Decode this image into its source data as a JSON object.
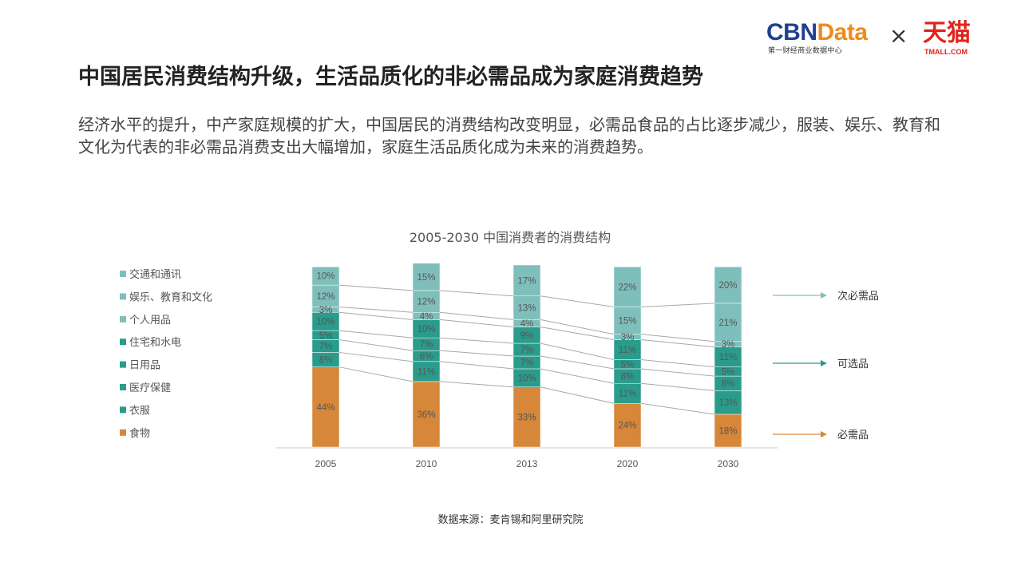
{
  "header": {
    "logo_cbn_part1": "CBN",
    "logo_cbn_part2": "Data",
    "logo_cbn_sub": "第一财经商业数据中心",
    "logo_times": "×",
    "logo_tmall": "天猫",
    "logo_tmall_sub": "TMALL.COM"
  },
  "page": {
    "title": "中国居民消费结构升级，生活品质化的非必需品成为家庭消费趋势",
    "description": "经济水平的提升，中产家庭规模的扩大，中国居民的消费结构改变明显，必需品食品的占比逐步减少，服装、娱乐、教育和文化为代表的非必需品消费支出大幅增加，家庭生活品质化成为未来的消费趋势。",
    "source": "数据来源：麦肯锡和阿里研究院"
  },
  "colors": {
    "food": "#d6873a",
    "mid": "#2a9c8c",
    "light": "#7fbfbb",
    "connector": "#a8a8a8"
  },
  "chart_data": {
    "type": "bar",
    "stacked": true,
    "title": "2005-2030 中国消费者的消费结构",
    "categories": [
      "2005",
      "2010",
      "2013",
      "2020",
      "2030"
    ],
    "series": [
      {
        "name": "食物",
        "group": "必需品",
        "values": [
          44,
          36,
          33,
          24,
          18
        ]
      },
      {
        "name": "衣服",
        "group": "可选品",
        "values": [
          8,
          11,
          10,
          11,
          13
        ]
      },
      {
        "name": "医疗保健",
        "group": "可选品",
        "values": [
          7,
          6,
          7,
          8,
          8
        ]
      },
      {
        "name": "日用品",
        "group": "可选品",
        "values": [
          5,
          7,
          7,
          5,
          5
        ]
      },
      {
        "name": "住宅和水电",
        "group": "可选品",
        "values": [
          10,
          10,
          9,
          11,
          11
        ]
      },
      {
        "name": "个人用品",
        "group": "次必需品",
        "values": [
          3,
          4,
          4,
          3,
          3
        ]
      },
      {
        "name": "娱乐、教育和文化",
        "group": "次必需品",
        "values": [
          12,
          12,
          13,
          15,
          21
        ]
      },
      {
        "name": "交通和通讯",
        "group": "次必需品",
        "values": [
          10,
          15,
          17,
          22,
          20
        ]
      }
    ],
    "legend_order": [
      "交通和通讯",
      "娱乐、教育和文化",
      "个人用品",
      "住宅和水电",
      "日用品",
      "医疗保健",
      "衣服",
      "食物"
    ],
    "group_labels": [
      "次必需品",
      "可选品",
      "必需品"
    ],
    "value_suffix": "%",
    "legend": "left",
    "ylim": [
      0,
      100
    ]
  }
}
